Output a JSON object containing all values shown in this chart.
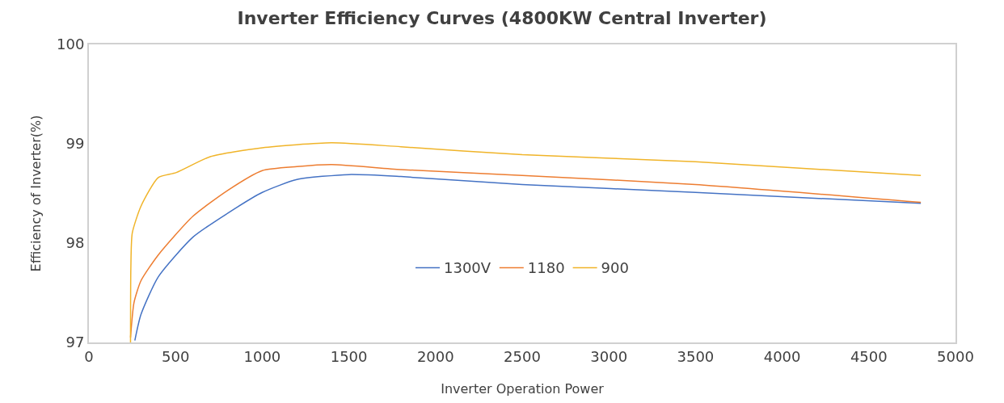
{
  "chart_data": {
    "type": "line",
    "title": "Inverter Efficiency Curves (4800KW Central Inverter)",
    "xlabel": "Inverter Operation Power",
    "ylabel": "Efficiency of Inverter(%)",
    "xlim": [
      0,
      5000
    ],
    "xticks": [
      0,
      500,
      1000,
      1500,
      2000,
      2500,
      3000,
      3500,
      4000,
      4500,
      5000
    ],
    "ylim": [
      97,
      100
    ],
    "yticks": [
      97,
      98,
      99,
      100
    ],
    "grid": false,
    "legend": "center",
    "marker": "none",
    "line_style": "solid",
    "series": [
      {
        "name": "1300V",
        "color": "#4472c4",
        "x": [
          265,
          300,
          400,
          600,
          800,
          1000,
          1200,
          1500,
          1800,
          2500,
          3500,
          4800
        ],
        "values": [
          97.02,
          97.28,
          97.66,
          98.06,
          98.3,
          98.51,
          98.64,
          98.69,
          98.67,
          98.59,
          98.51,
          98.4
        ]
      },
      {
        "name": "1180",
        "color": "#ed7d31",
        "x": [
          240,
          260,
          300,
          400,
          600,
          800,
          1000,
          1200,
          1400,
          1800,
          2500,
          3500,
          4800
        ],
        "values": [
          97.05,
          97.4,
          97.62,
          97.88,
          98.27,
          98.53,
          98.73,
          98.77,
          98.79,
          98.74,
          98.68,
          98.59,
          98.41
        ]
      },
      {
        "name": "900",
        "color": "#f0b429",
        "x": [
          240,
          242,
          250,
          300,
          400,
          504,
          700,
          1000,
          1400,
          1800,
          2500,
          3500,
          4800
        ],
        "values": [
          97.0,
          97.75,
          98.1,
          98.37,
          98.66,
          98.71,
          98.87,
          98.96,
          99.01,
          98.97,
          98.89,
          98.82,
          98.68
        ]
      }
    ]
  }
}
